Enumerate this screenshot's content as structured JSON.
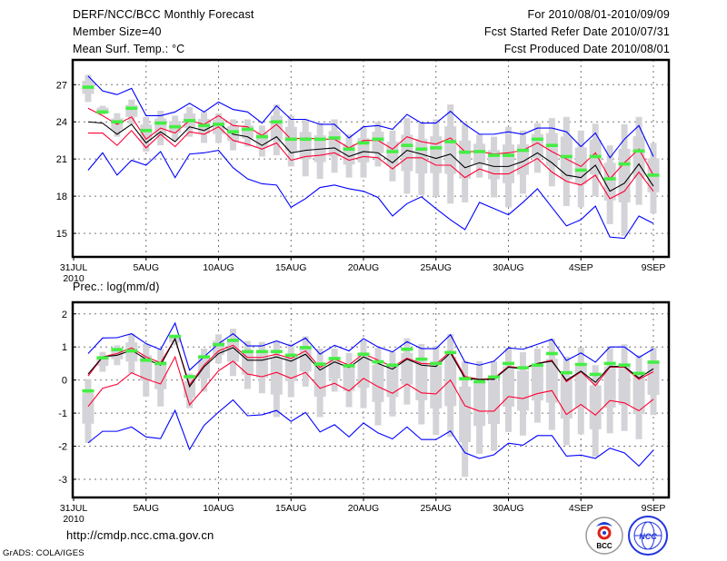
{
  "header": {
    "title": "DERF/NCC/BCC Monthly Forecast",
    "member_size": "Member Size=40",
    "variable": "Mean Surf. Temp.: °C",
    "period": "For 2010/08/01-2010/09/09",
    "start_date": "Fcst Started Refer Date 2010/07/31",
    "produced_date": "Fcst Produced Date 2010/08/01"
  },
  "footer": {
    "url": "http://cmdp.ncc.cma.gov.cn",
    "credit": "GrADS: COLA/IGES",
    "logo_bcc": "BCC",
    "logo_ncc": "NCC"
  },
  "colors": {
    "max_min": "#0000ff",
    "spread": "#ff0033",
    "mean": "#000000",
    "observed": "#44ee44",
    "range_bar": "#d4d4d8"
  },
  "chart_data": [
    {
      "type": "line",
      "title": "Mean Surf. Temp.: °C",
      "xlabel": "",
      "ylabel": "°C",
      "x_days": "1..40 (2010-08-01 to 2010-09-09)",
      "x_tick_labels": [
        "31JUL",
        "5AUG",
        "10AUG",
        "15AUG",
        "20AUG",
        "25AUG",
        "30AUG",
        "4SEP",
        "9SEP"
      ],
      "x_year_label": "2010",
      "y_ticks": [
        27,
        24,
        21,
        18,
        15
      ],
      "ylim": [
        13.1,
        29.0
      ],
      "grid": true,
      "series": [
        {
          "name": "max",
          "values": [
            27.7,
            26.5,
            26.2,
            26.7,
            24.5,
            24.5,
            24.8,
            25.5,
            24.8,
            25.6,
            25.0,
            24.8,
            23.9,
            25.3,
            24.2,
            24.2,
            23.8,
            23.8,
            22.7,
            23.6,
            23.7,
            23.4,
            24.6,
            23.9,
            23.9,
            24.85,
            23.8,
            23.0,
            23.0,
            23.2,
            23.0,
            23.5,
            23.5,
            23.2,
            22.0,
            23.1,
            21.1,
            22.6,
            23.7,
            21.2
          ]
        },
        {
          "name": "min",
          "values": [
            20.1,
            21.5,
            19.7,
            20.9,
            20.5,
            21.6,
            19.5,
            21.4,
            21.5,
            21.7,
            20.3,
            19.4,
            19.0,
            18.9,
            17.1,
            17.8,
            18.7,
            18.9,
            18.6,
            18.4,
            17.9,
            16.4,
            17.4,
            17.95,
            17.0,
            16.1,
            15.3,
            17.5,
            17.0,
            16.5,
            17.5,
            18.6,
            17.1,
            15.6,
            16.1,
            17.2,
            14.7,
            14.6,
            16.4,
            15.8
          ]
        },
        {
          "name": "upper",
          "values": [
            25.1,
            24.5,
            23.8,
            24.4,
            22.6,
            23.5,
            23.1,
            24.1,
            23.8,
            24.5,
            23.7,
            23.6,
            22.9,
            23.8,
            22.6,
            22.7,
            22.6,
            22.6,
            21.9,
            22.5,
            22.5,
            21.8,
            22.8,
            22.4,
            22.2,
            22.7,
            21.6,
            21.6,
            21.4,
            21.5,
            21.7,
            22.3,
            21.6,
            21.0,
            20.4,
            21.5,
            19.4,
            20.7,
            21.8,
            19.7
          ]
        },
        {
          "name": "lower",
          "values": [
            23.1,
            23.1,
            22.1,
            23.3,
            21.9,
            23.0,
            22.0,
            23.2,
            23.0,
            23.6,
            22.5,
            22.2,
            21.8,
            22.3,
            20.9,
            21.2,
            21.3,
            21.5,
            20.9,
            21.2,
            21.1,
            20.2,
            21.1,
            21.1,
            20.5,
            20.5,
            19.5,
            20.2,
            19.8,
            19.8,
            20.4,
            21.05,
            19.95,
            19.2,
            18.9,
            19.7,
            17.8,
            18.4,
            19.95,
            18.4
          ]
        },
        {
          "name": "mean",
          "values": [
            24.0,
            23.9,
            23.0,
            23.8,
            22.3,
            23.2,
            22.4,
            23.6,
            23.3,
            23.9,
            23.0,
            22.8,
            22.1,
            22.8,
            21.5,
            21.7,
            21.8,
            21.9,
            21.2,
            21.6,
            21.5,
            20.7,
            21.7,
            21.4,
            21.05,
            21.4,
            20.3,
            20.7,
            20.4,
            20.4,
            20.8,
            21.5,
            20.7,
            19.7,
            19.5,
            20.5,
            18.4,
            19.05,
            20.6,
            18.8
          ]
        },
        {
          "name": "observed",
          "values": [
            26.8,
            24.8,
            24.0,
            25.1,
            23.3,
            23.9,
            23.6,
            24.1,
            23.7,
            23.8,
            23.2,
            23.4,
            22.8,
            24.0,
            22.6,
            22.6,
            22.6,
            22.7,
            21.8,
            22.3,
            22.6,
            21.6,
            22.1,
            21.8,
            21.9,
            22.4,
            21.55,
            21.6,
            21.3,
            21.3,
            21.7,
            22.6,
            22.1,
            21.2,
            20.1,
            21.2,
            19.4,
            20.6,
            21.65,
            19.7
          ]
        },
        {
          "name": "range_high",
          "values": [
            27.8,
            25.3,
            24.7,
            25.8,
            24.4,
            24.9,
            24.5,
            25.2,
            24.8,
            24.7,
            24.2,
            24.2,
            23.7,
            25.4,
            24.5,
            24.2,
            23.9,
            24.2,
            23.0,
            23.6,
            24.0,
            23.3,
            24.3,
            23.9,
            24.2,
            25.4,
            23.9,
            23.0,
            22.8,
            23.6,
            23.3,
            23.9,
            24.3,
            24.4,
            23.3,
            23.85,
            22.1,
            23.8,
            24.4,
            22.3
          ]
        },
        {
          "name": "range_low",
          "values": [
            25.6,
            24.6,
            22.8,
            23.8,
            21.6,
            22.1,
            22.5,
            22.8,
            22.3,
            22.3,
            21.7,
            22.0,
            21.2,
            21.3,
            20.4,
            19.6,
            19.4,
            19.9,
            19.5,
            19.5,
            20.4,
            19.2,
            18.2,
            18.1,
            18.0,
            17.4,
            17.5,
            19.5,
            17.9,
            17.1,
            18.2,
            19.9,
            18.8,
            17.2,
            17.1,
            18.0,
            15.75,
            14.8,
            17.3,
            16.6
          ]
        }
      ]
    },
    {
      "type": "line",
      "title": "Prec.: log(mm/d)",
      "xlabel": "",
      "ylabel": "log(mm/d)",
      "x_days": "1..40 (2010-08-01 to 2010-09-09)",
      "x_tick_labels": [
        "31JUL",
        "5AUG",
        "10AUG",
        "15AUG",
        "20AUG",
        "25AUG",
        "30AUG",
        "4SEP",
        "9SEP"
      ],
      "x_year_label": "2010",
      "y_ticks": [
        2,
        1,
        0,
        -1,
        -2,
        -3
      ],
      "ylim": [
        -3.55,
        2.35
      ],
      "grid": true,
      "series": [
        {
          "name": "max",
          "values": [
            0.8,
            1.27,
            1.28,
            1.4,
            1.1,
            0.92,
            1.72,
            0.3,
            0.7,
            1.1,
            1.4,
            1.03,
            1.03,
            1.18,
            1.03,
            1.27,
            0.78,
            1.05,
            0.88,
            1.25,
            1.0,
            0.85,
            1.16,
            0.95,
            0.95,
            1.37,
            0.54,
            0.45,
            0.57,
            0.97,
            0.93,
            1.08,
            1.23,
            0.59,
            0.82,
            0.54,
            1.0,
            1.0,
            0.68,
            0.94
          ]
        },
        {
          "name": "min",
          "values": [
            -1.9,
            -1.55,
            -1.55,
            -1.42,
            -1.72,
            -1.77,
            -0.92,
            -2.1,
            -1.37,
            -0.97,
            -0.6,
            -1.08,
            -1.05,
            -0.92,
            -1.25,
            -0.98,
            -1.57,
            -1.35,
            -1.72,
            -1.3,
            -1.6,
            -1.78,
            -1.42,
            -1.8,
            -1.8,
            -1.54,
            -2.2,
            -2.37,
            -2.26,
            -1.91,
            -1.97,
            -1.68,
            -1.68,
            -2.3,
            -2.27,
            -2.37,
            -2.06,
            -2.2,
            -2.6,
            -2.12
          ]
        },
        {
          "name": "upper",
          "values": [
            0.12,
            0.7,
            0.8,
            0.97,
            0.7,
            0.52,
            1.25,
            -0.15,
            0.45,
            0.88,
            1.05,
            0.68,
            0.68,
            0.78,
            0.65,
            0.88,
            0.38,
            0.63,
            0.45,
            0.8,
            0.6,
            0.4,
            0.66,
            0.5,
            0.48,
            0.87,
            0.11,
            0.02,
            0.05,
            0.41,
            0.36,
            0.5,
            0.6,
            -0.05,
            0.25,
            -0.17,
            0.39,
            0.39,
            0.02,
            0.25
          ]
        },
        {
          "name": "lower",
          "values": [
            -0.8,
            -0.25,
            -0.13,
            0.22,
            0.03,
            -0.12,
            0.7,
            -0.75,
            -0.25,
            0.28,
            0.57,
            0.18,
            0.1,
            0.23,
            0.05,
            0.23,
            -0.25,
            -0.1,
            -0.33,
            0.05,
            -0.2,
            -0.4,
            -0.12,
            -0.39,
            -0.42,
            0.0,
            -0.78,
            -0.94,
            -0.94,
            -0.5,
            -0.56,
            -0.41,
            -0.32,
            -1.04,
            -0.74,
            -1.06,
            -0.62,
            -0.69,
            -0.93,
            -0.58
          ]
        },
        {
          "name": "mean",
          "values": [
            0.18,
            0.7,
            0.75,
            0.9,
            0.63,
            0.45,
            1.25,
            -0.2,
            0.4,
            0.8,
            0.98,
            0.6,
            0.6,
            0.7,
            0.57,
            0.78,
            0.3,
            0.55,
            0.38,
            0.7,
            0.5,
            0.33,
            0.63,
            0.45,
            0.41,
            0.82,
            0.05,
            0.02,
            0.02,
            0.39,
            0.34,
            0.5,
            0.57,
            -0.01,
            0.27,
            -0.07,
            0.41,
            0.41,
            0.06,
            0.34
          ]
        },
        {
          "name": "observed",
          "values": [
            -0.33,
            0.67,
            0.92,
            0.88,
            0.6,
            0.5,
            1.32,
            0.1,
            0.7,
            1.07,
            1.2,
            0.86,
            0.86,
            0.86,
            0.75,
            0.98,
            0.48,
            0.65,
            0.43,
            0.78,
            0.55,
            0.45,
            0.93,
            0.63,
            0.5,
            0.83,
            0.04,
            -0.05,
            0.09,
            0.5,
            0.37,
            0.45,
            0.8,
            0.22,
            0.47,
            0.17,
            0.5,
            0.45,
            0.2,
            0.54
          ]
        },
        {
          "name": "range_high",
          "values": [
            0.03,
            0.85,
            1.05,
            1.4,
            1.1,
            0.95,
            1.35,
            0.2,
            0.95,
            1.38,
            1.55,
            1.18,
            1.15,
            1.15,
            1.1,
            1.32,
            0.95,
            0.95,
            0.82,
            1.2,
            0.98,
            0.85,
            1.26,
            1.09,
            1.02,
            1.39,
            0.57,
            0.57,
            0.57,
            0.98,
            0.84,
            0.95,
            1.25,
            0.71,
            0.99,
            0.45,
            0.98,
            1.08,
            0.75,
            0.98
          ]
        },
        {
          "name": "range_low",
          "values": [
            -1.9,
            0.25,
            0.45,
            0.2,
            -0.5,
            -0.8,
            1.05,
            -0.85,
            -0.35,
            0.5,
            0.12,
            -0.27,
            -0.4,
            -1.12,
            -0.52,
            -0.2,
            -1.12,
            -0.35,
            -0.82,
            -0.85,
            -1.37,
            -1.1,
            -0.74,
            -1.34,
            -1.66,
            -1.72,
            -2.93,
            -2.23,
            -2.14,
            -1.57,
            -1.68,
            -1.29,
            -1.51,
            -1.97,
            -1.64,
            -2.32,
            -1.61,
            -1.54,
            -1.79,
            -1.06
          ]
        }
      ]
    }
  ]
}
